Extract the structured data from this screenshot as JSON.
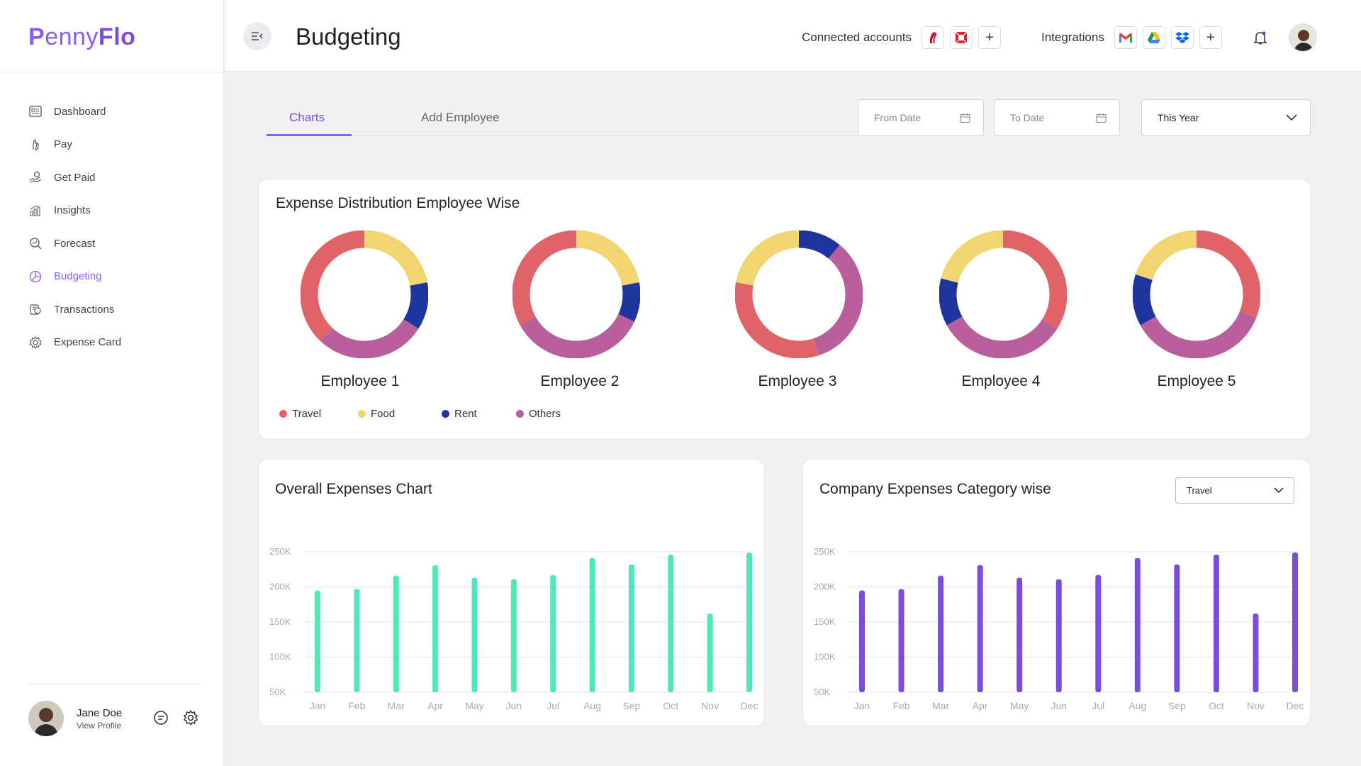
{
  "brand": {
    "logo_p": "P",
    "logo_enny": "enny",
    "logo_flo": "Flo"
  },
  "sidebar": {
    "items": [
      {
        "label": "Dashboard",
        "icon": "dashboard-icon"
      },
      {
        "label": "Pay",
        "icon": "pay-hand-icon"
      },
      {
        "label": "Get Paid",
        "icon": "get-paid-icon"
      },
      {
        "label": "Insights",
        "icon": "insights-chart-icon"
      },
      {
        "label": "Forecast",
        "icon": "forecast-search-icon"
      },
      {
        "label": "Budgeting",
        "icon": "budgeting-pie-icon",
        "active": true
      },
      {
        "label": "Transactions",
        "icon": "transactions-icon"
      },
      {
        "label": "Expense Card",
        "icon": "expense-card-gear-icon"
      }
    ],
    "profile": {
      "name": "Jane Doe",
      "link": "View Profile"
    }
  },
  "header": {
    "title": "Budgeting",
    "connected_label": "Connected accounts",
    "integrations_label": "Integrations"
  },
  "tabs": [
    {
      "label": "Charts",
      "active": true
    },
    {
      "label": "Add Employee",
      "active": false
    }
  ],
  "filters": {
    "from_date": "From Date",
    "to_date": "To Date",
    "period": "This Year"
  },
  "colors": {
    "travel": "#e06368",
    "food": "#f0d570",
    "rent": "#1e35a0",
    "others": "#b85f9c",
    "accent": "#8b5cf6",
    "bar_green": "#4ee8bb",
    "bar_purple": "#7c4ddc"
  },
  "expense_distribution": {
    "title": "Expense Distribution Employee Wise",
    "legend": [
      "Travel",
      "Food",
      "Rent",
      "Others"
    ],
    "employees": [
      {
        "name": "Employee 1",
        "start": "food",
        "shares": {
          "food": 0.22,
          "rent": 0.12,
          "others": 0.28,
          "travel": 0.38
        }
      },
      {
        "name": "Employee 2",
        "start": "food",
        "shares": {
          "food": 0.22,
          "rent": 0.1,
          "others": 0.35,
          "travel": 0.33
        }
      },
      {
        "name": "Employee 3",
        "start": "rent",
        "shares": {
          "rent": 0.11,
          "others": 0.34,
          "travel": 0.33,
          "food": 0.22
        }
      },
      {
        "name": "Employee 4",
        "start": "travel",
        "shares": {
          "travel": 0.34,
          "others": 0.33,
          "rent": 0.12,
          "food": 0.21
        }
      },
      {
        "name": "Employee 5",
        "start": "travel",
        "shares": {
          "travel": 0.31,
          "others": 0.36,
          "rent": 0.13,
          "food": 0.2
        }
      }
    ]
  },
  "overall_chart": {
    "title": "Overall Expenses Chart"
  },
  "category_chart": {
    "title": "Company Expenses Category wise",
    "selected": "Travel"
  },
  "chart_data": [
    {
      "type": "bar",
      "title": "Overall Expenses Chart",
      "categories": [
        "Jan",
        "Feb",
        "Mar",
        "Apr",
        "May",
        "Jun",
        "Jul",
        "Aug",
        "Sep",
        "Oct",
        "Nov",
        "Dec"
      ],
      "values": [
        195000,
        197000,
        216000,
        231000,
        213000,
        211000,
        217000,
        241000,
        232000,
        246000,
        162000,
        249000
      ],
      "yticks": [
        "250K",
        "200K",
        "150K",
        "100K",
        "50K"
      ],
      "ylim": [
        50000,
        250000
      ],
      "grid": true
    },
    {
      "type": "bar",
      "title": "Company Expenses Category wise",
      "categories": [
        "Jan",
        "Feb",
        "Mar",
        "Apr",
        "May",
        "Jun",
        "Jul",
        "Aug",
        "Sep",
        "Oct",
        "Nov",
        "Dec"
      ],
      "values": [
        195000,
        197000,
        216000,
        231000,
        213000,
        211000,
        217000,
        241000,
        232000,
        246000,
        162000,
        249000
      ],
      "yticks": [
        "250K",
        "200K",
        "150K",
        "100K",
        "50K"
      ],
      "ylim": [
        50000,
        250000
      ],
      "grid": true
    }
  ]
}
